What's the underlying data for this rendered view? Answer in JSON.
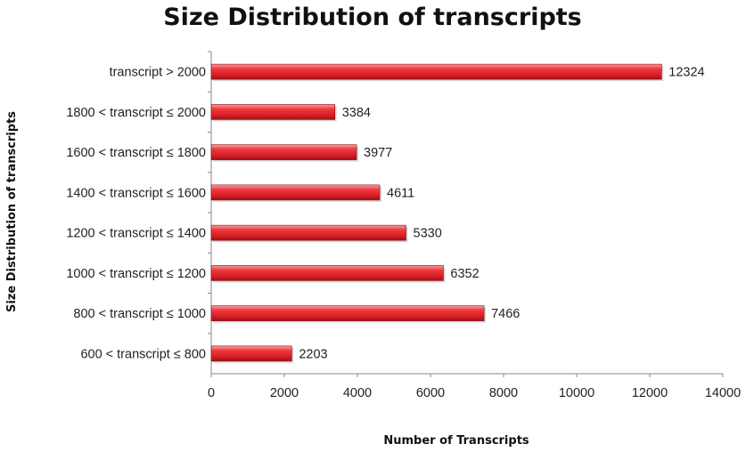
{
  "chart_data": {
    "type": "bar",
    "orientation": "horizontal",
    "title": "Size Distribution of transcripts",
    "xlabel": "Number of Transcripts",
    "ylabel": "Size Distribution of transcripts",
    "categories": [
      "transcript > 2000",
      "1800 < transcript ≤ 2000",
      "1600 < transcript ≤ 1800",
      "1400 < transcript ≤ 1600",
      "1200 < transcript ≤ 1400",
      "1000 < transcript ≤ 1200",
      "800 < transcript ≤ 1000",
      "600 < transcript ≤ 800"
    ],
    "values": [
      12324,
      3384,
      3977,
      4611,
      5330,
      6352,
      7466,
      2203
    ],
    "xlim": [
      0,
      14000
    ],
    "xticks": [
      "0",
      "2000",
      "4000",
      "6000",
      "8000",
      "10000",
      "12000",
      "14000"
    ],
    "grid": false,
    "legend": "none",
    "bar_color": "#e8262d"
  }
}
